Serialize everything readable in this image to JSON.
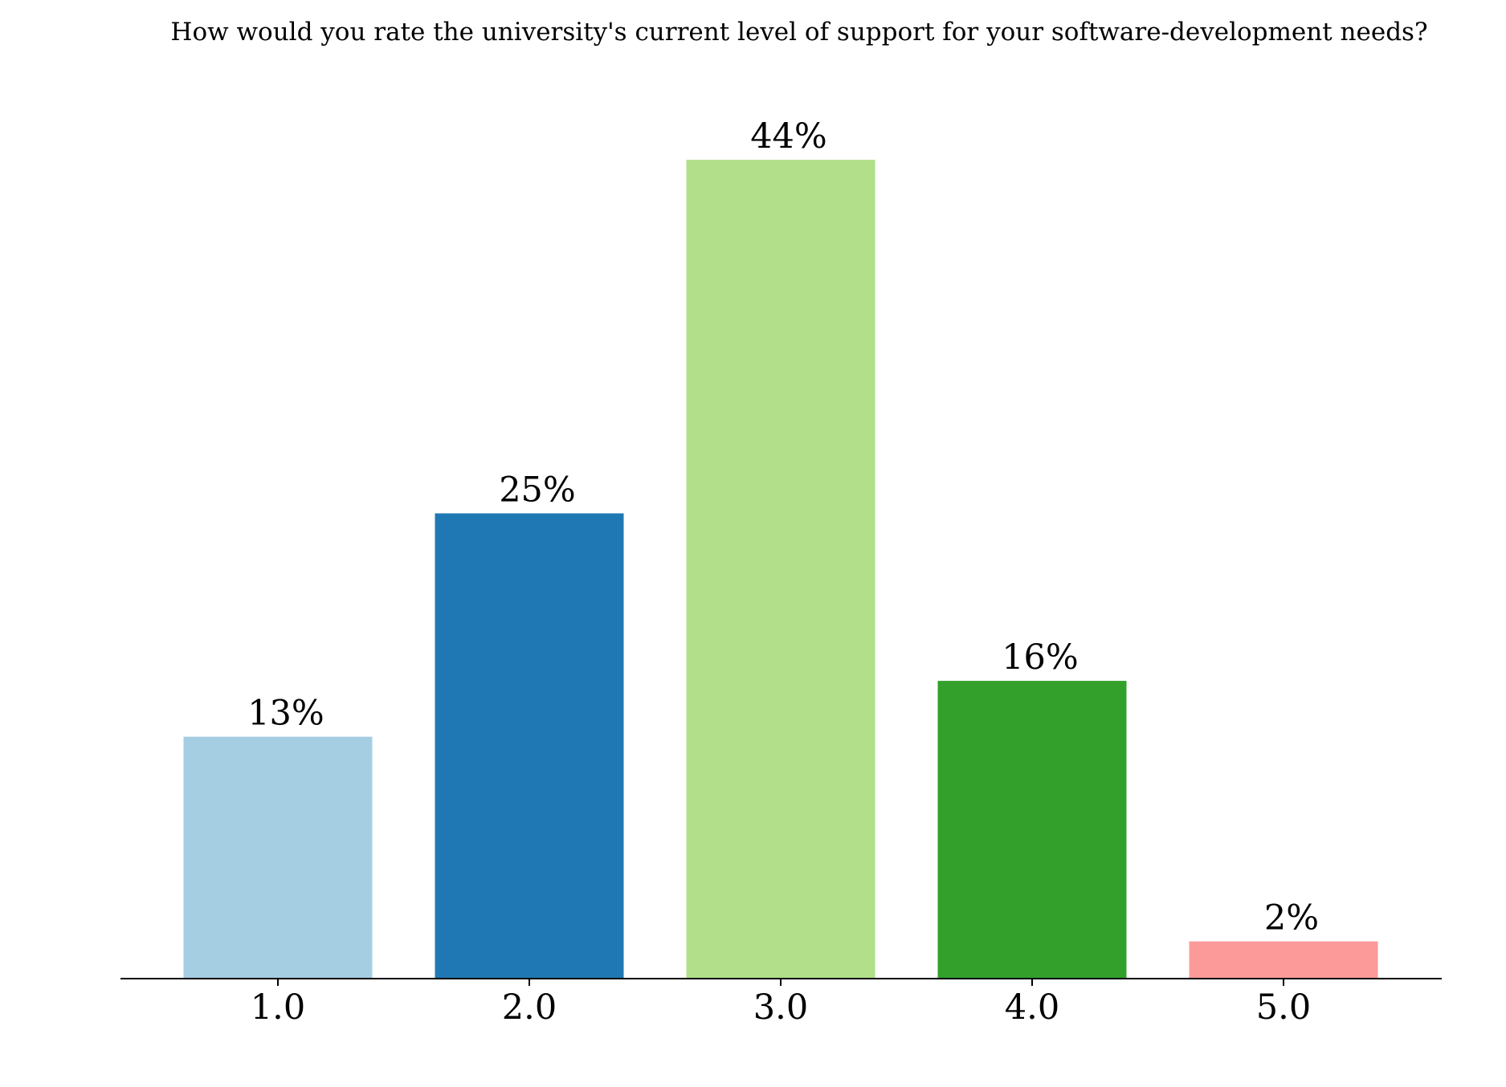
{
  "chart_data": {
    "type": "bar",
    "title": "How would you rate the university's current level of support for your software-development needs?",
    "xlabel": "",
    "ylabel": "",
    "categories": [
      "1.0",
      "2.0",
      "3.0",
      "4.0",
      "5.0"
    ],
    "values": [
      13,
      25,
      44,
      16,
      2
    ],
    "value_labels": [
      "13%",
      "25%",
      "44%",
      "16%",
      "2%"
    ],
    "colors": [
      "#a6cee3",
      "#1f78b4",
      "#b2df8a",
      "#33a02c",
      "#fb9a99"
    ],
    "ylim": [
      0,
      46.2
    ],
    "grid": false,
    "legend": "none",
    "spines": [
      "bottom"
    ]
  }
}
